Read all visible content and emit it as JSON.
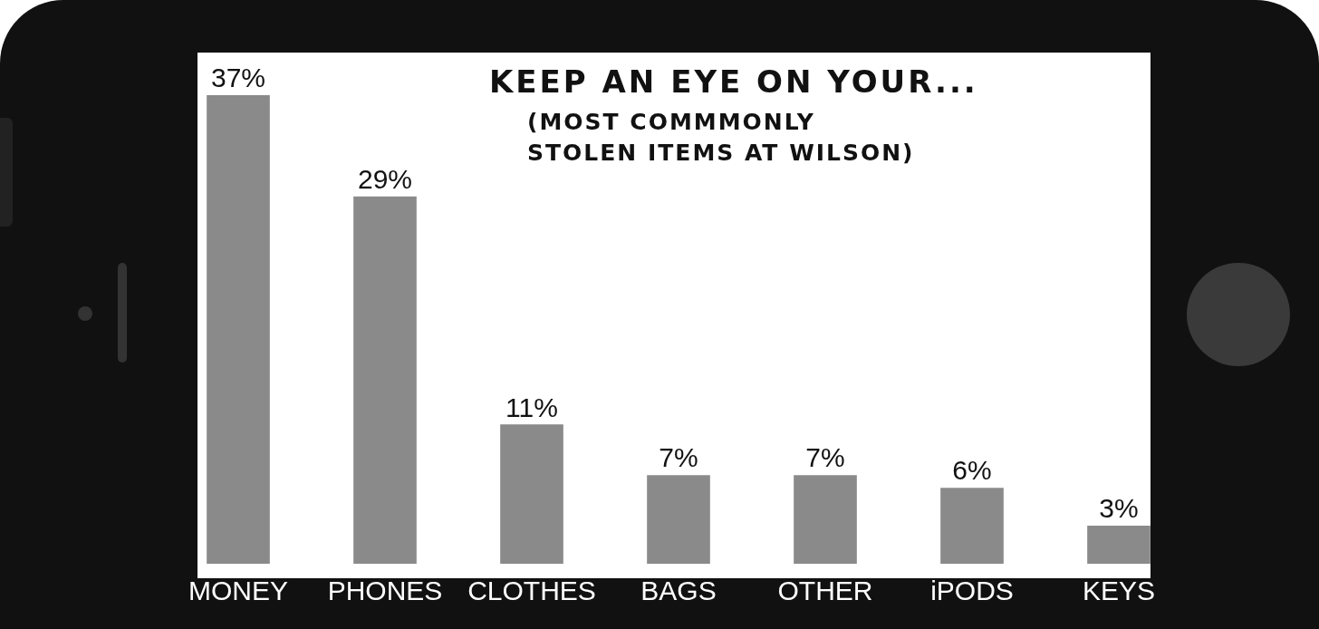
{
  "chart_data": {
    "type": "bar",
    "title": "KEEP AN EYE ON YOUR...",
    "subtitle": "(MOST COMMMONLY STOLEN ITEMS AT WILSON)",
    "categories": [
      "MONEY",
      "PHONES",
      "CLOTHES",
      "BAGS",
      "OTHER",
      "iPODS",
      "KEYS"
    ],
    "values": [
      37,
      29,
      11,
      7,
      7,
      6,
      3
    ],
    "value_labels": [
      "37%",
      "29%",
      "11%",
      "7%",
      "7%",
      "6%",
      "3%"
    ],
    "data_labels": true,
    "color": "#8a8a8a",
    "ylim": [
      0,
      37
    ],
    "grid": false,
    "tick_labels": "x"
  }
}
